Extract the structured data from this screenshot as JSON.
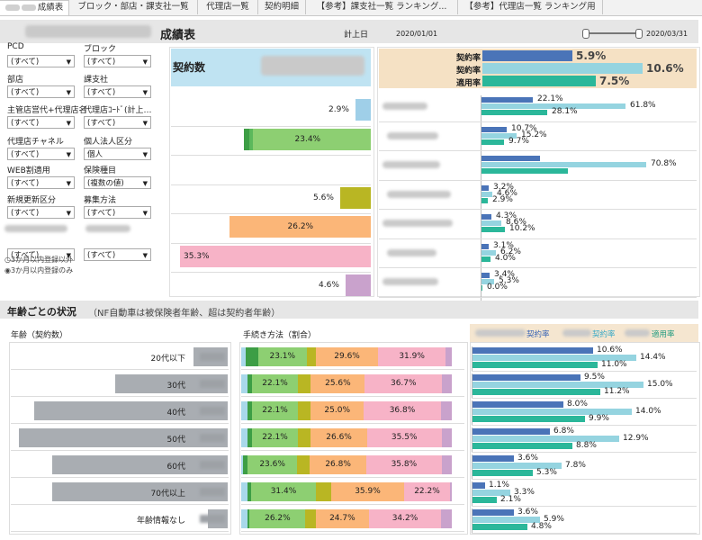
{
  "tabs": [
    {
      "label": "成績表",
      "active": true
    },
    {
      "label": "ブロック・部店・課支社一覧"
    },
    {
      "label": "代理店一覧"
    },
    {
      "label": "契約明細"
    },
    {
      "label": "【参考】課支社一覧 ランキング..."
    },
    {
      "label": "【参考】代理店一覧 ランキング用"
    }
  ],
  "header": {
    "title": "成績表",
    "keijobi_label": "計上日",
    "date_from": "2020/01/01",
    "date_to": "2020/03/31"
  },
  "filters": [
    {
      "label": "PCD",
      "value": "(すべて)"
    },
    {
      "label": "ブロック",
      "value": "(すべて)"
    },
    {
      "label": "部店",
      "value": "(すべて)"
    },
    {
      "label": "課支社",
      "value": "(すべて)"
    },
    {
      "label": "主管店営代+代理店名",
      "value": "(すべて)"
    },
    {
      "label": "代理店ｺｰﾄﾞ(計上…",
      "value": "(すべて)"
    },
    {
      "label": "代理店チャネル",
      "value": "(すべて)"
    },
    {
      "label": "個人法人区分",
      "value": "個人"
    },
    {
      "label": "WEB割適用",
      "value": "(すべて)"
    },
    {
      "label": "保険種目",
      "value": "(複数の値)"
    },
    {
      "label": "新規更新区分",
      "value": "(すべて)"
    },
    {
      "label": "募集方法",
      "value": "(すべて)"
    },
    {
      "label": "",
      "value": "(すべて)"
    },
    {
      "label": "",
      "value": "(すべて)"
    }
  ],
  "radio_options": [
    "3か月以内登録以外",
    "3か月以内登録のみ"
  ],
  "upper": {
    "contract_count_label": "契約数",
    "left_values": [
      "2.9%",
      "23.4%",
      "",
      "5.6%",
      "26.2%",
      "35.3%",
      "4.6%"
    ],
    "legend": [
      {
        "label": "契約率",
        "value": "5.9%"
      },
      {
        "label": "契約率",
        "value": "10.6%"
      },
      {
        "label": "適用率",
        "value": "7.5%"
      }
    ],
    "right_rows": [
      [
        "",
        "22.1%",
        "61.8%",
        "28.1%"
      ],
      [
        "",
        "10.7%",
        "15.2%",
        "9.7%"
      ],
      [
        "",
        "",
        "70.8%",
        ""
      ],
      [
        "",
        "3.2%",
        "4.6%",
        "2.9%"
      ],
      [
        "",
        "4.3%",
        "8.6%",
        "10.2%"
      ],
      [
        "",
        "3.1%",
        "6.2%",
        "4.0%"
      ],
      [
        "",
        "3.4%",
        "5.3%",
        "0.0%"
      ]
    ]
  },
  "section2": {
    "title": "年齢ごとの状況",
    "note": "（NF自動車は被保険者年齢、超は契約者年齢）",
    "col_age": "年齢（契約数）",
    "col_method": "手続き方法（割合）",
    "legend_labels": [
      "契約率",
      "契約率",
      "適用率"
    ],
    "rows": [
      {
        "age": "20代以下",
        "seg": [
          "23.1%",
          "29.6%",
          "31.9%"
        ],
        "rates": [
          "10.6%",
          "14.4%",
          "11.0%"
        ]
      },
      {
        "age": "30代",
        "seg": [
          "22.1%",
          "25.6%",
          "36.7%"
        ],
        "rates": [
          "9.5%",
          "15.0%",
          "11.2%"
        ]
      },
      {
        "age": "40代",
        "seg": [
          "22.1%",
          "25.0%",
          "36.8%"
        ],
        "rates": [
          "8.0%",
          "14.0%",
          "9.9%"
        ]
      },
      {
        "age": "50代",
        "seg": [
          "22.1%",
          "26.6%",
          "35.5%"
        ],
        "rates": [
          "6.8%",
          "12.9%",
          "8.8%"
        ]
      },
      {
        "age": "60代",
        "seg": [
          "23.6%",
          "26.8%",
          "35.8%"
        ],
        "rates": [
          "3.6%",
          "7.8%",
          "5.3%"
        ]
      },
      {
        "age": "70代以上",
        "seg": [
          "31.4%",
          "35.9%",
          "22.2%"
        ],
        "rates": [
          "1.1%",
          "3.3%",
          "2.1%"
        ]
      },
      {
        "age": "年齢情報なし",
        "seg": [
          "26.2%",
          "24.7%",
          "34.2%"
        ],
        "rates": [
          "3.6%",
          "5.9%",
          "4.8%"
        ]
      }
    ]
  },
  "colors": {
    "dark_blue": "#4a74b8",
    "light_blue": "#95d4e0",
    "teal": "#2bb79a",
    "green": "#8dcf72",
    "orange": "#fbb678",
    "pink": "#f7b3c7",
    "olive": "#b9b623",
    "purple": "#c9a2cc",
    "lightblue_bar": "#9fcfe8",
    "gray": "#a9adb2"
  }
}
